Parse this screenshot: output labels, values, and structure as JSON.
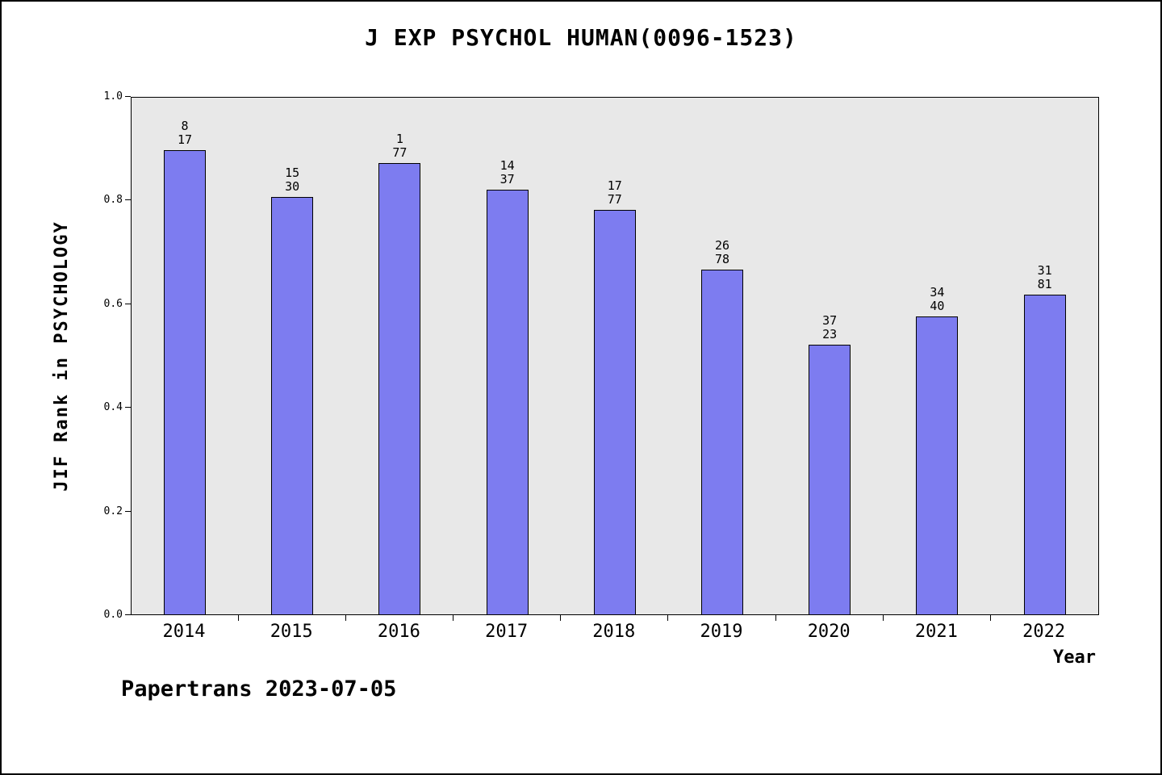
{
  "chart_data": {
    "type": "bar",
    "title": "J EXP PSYCHOL HUMAN(0096-1523)",
    "xlabel": "Year",
    "ylabel": "JIF Rank in PSYCHOLOGY",
    "ylim": [
      0.0,
      1.0
    ],
    "yticks": [
      "0.0",
      "0.2",
      "0.4",
      "0.6",
      "0.8",
      "1.0"
    ],
    "grid": false,
    "legend": "none",
    "plot_bg": "#e8e8e8",
    "bar_color": "#7d7cf0",
    "bar_border_color": "#000000",
    "categories": [
      "2014",
      "2015",
      "2016",
      "2017",
      "2018",
      "2019",
      "2020",
      "2021",
      "2022"
    ],
    "values": [
      0.895,
      0.805,
      0.87,
      0.82,
      0.78,
      0.665,
      0.52,
      0.575,
      0.617
    ],
    "bar_labels": [
      {
        "rank": "8",
        "total": "17"
      },
      {
        "rank": "15",
        "total": "30"
      },
      {
        "rank": "1",
        "total": "77"
      },
      {
        "rank": "14",
        "total": "37"
      },
      {
        "rank": "17",
        "total": "77"
      },
      {
        "rank": "26",
        "total": "78"
      },
      {
        "rank": "37",
        "total": "23"
      },
      {
        "rank": "34",
        "total": "40"
      },
      {
        "rank": "31",
        "total": "81"
      }
    ]
  },
  "footer": {
    "text": "Papertrans 2023-07-05"
  }
}
